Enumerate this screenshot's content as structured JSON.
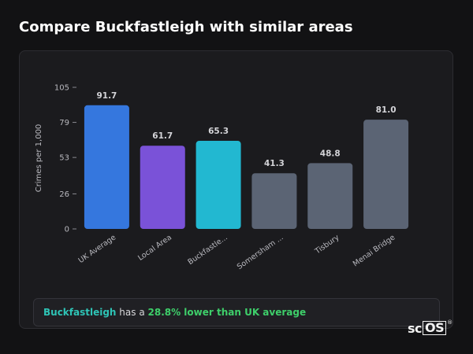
{
  "page": {
    "title": "Compare Buckfastleigh with similar areas"
  },
  "chart_data": {
    "type": "bar",
    "ylabel": "Crimes per 1,000",
    "xlabel": "",
    "ylim": [
      0,
      105
    ],
    "yticks": [
      0,
      26,
      53,
      79,
      105
    ],
    "categories": [
      "UK Average",
      "Local Area",
      "Buckfastle...",
      "Somersham ...",
      "Tisbury",
      "Menai Bridge"
    ],
    "values": [
      91.7,
      61.7,
      65.3,
      41.3,
      48.8,
      81.0
    ],
    "value_labels": [
      "91.7",
      "61.7",
      "65.3",
      "41.3",
      "48.8",
      "81.0"
    ],
    "colors": [
      "#3577de",
      "#7a52d8",
      "#22b8d1",
      "#5b6474",
      "#5b6474",
      "#5b6474"
    ],
    "grid": false,
    "legend": "none"
  },
  "summary": {
    "place": "Buckfastleigh",
    "connector": " has a ",
    "difference": "28.8% lower than UK average"
  },
  "logo": {
    "prefix": "sc",
    "boxed": "OS",
    "mark": "®"
  }
}
